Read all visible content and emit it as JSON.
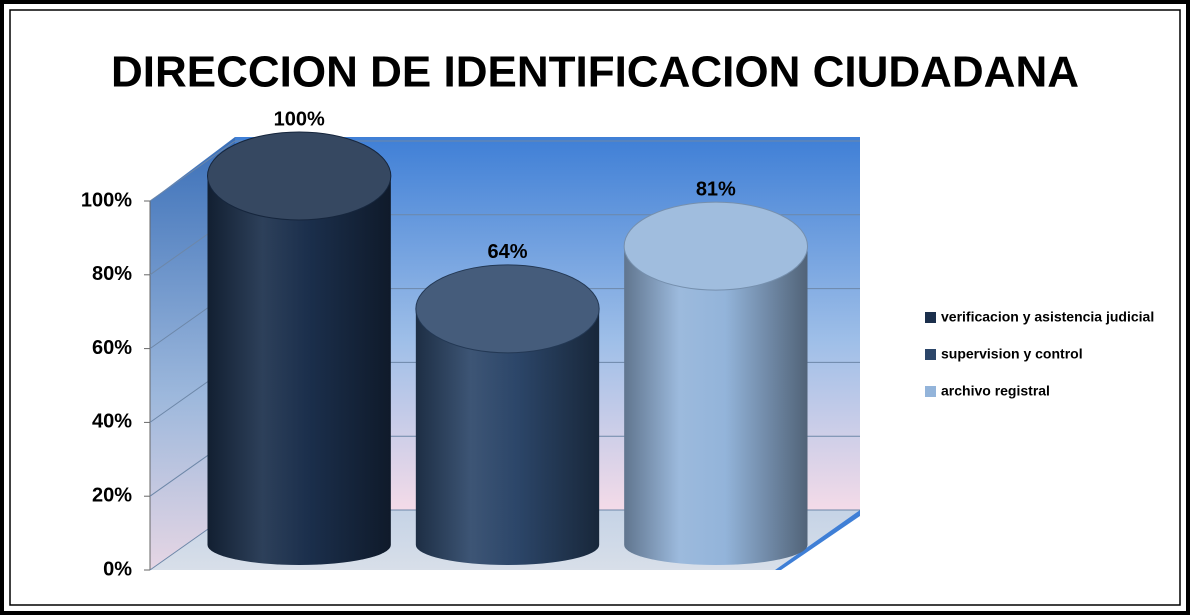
{
  "chart_data": {
    "type": "cylinder",
    "title": "DIRECCION DE IDENTIFICACION CIUDADANA",
    "series": [
      {
        "name": "verificacion y asistencia judicial",
        "color": "#1b2f4c",
        "values": [
          100
        ],
        "value_labels": [
          "100%"
        ]
      },
      {
        "name": "supervision y control",
        "color": "#2c4669",
        "values": [
          64
        ],
        "value_labels": [
          "64%"
        ]
      },
      {
        "name": "archivo registral",
        "color": "#93b4da",
        "values": [
          81
        ],
        "value_labels": [
          "81%"
        ]
      }
    ],
    "ylim": [
      0,
      100
    ],
    "yticks": [
      {
        "value": 0,
        "label": "0%"
      },
      {
        "value": 20,
        "label": "20%"
      },
      {
        "value": 40,
        "label": "40%"
      },
      {
        "value": 60,
        "label": "60%"
      },
      {
        "value": 80,
        "label": "80%"
      },
      {
        "value": 100,
        "label": "100%"
      }
    ],
    "grid": true,
    "legend": "right"
  }
}
